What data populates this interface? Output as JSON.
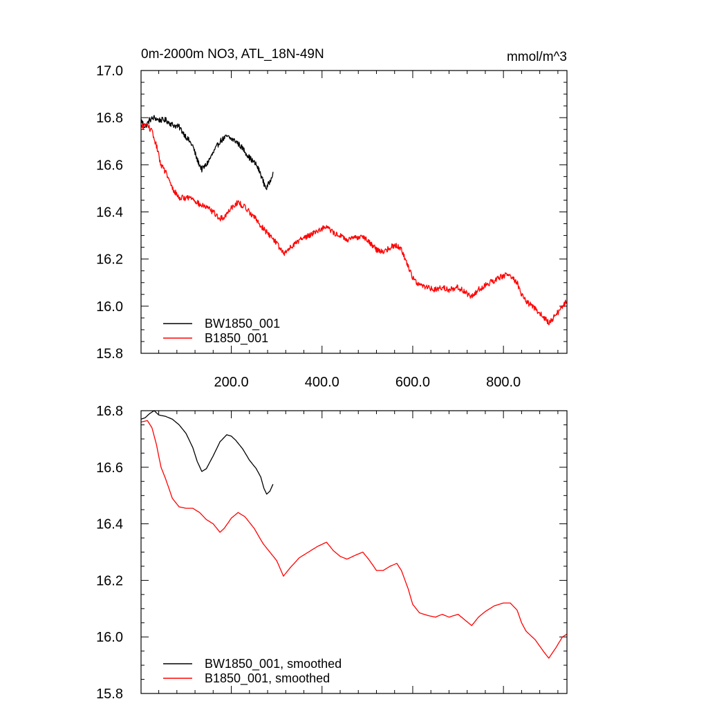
{
  "chart_data": [
    {
      "type": "line",
      "title": "0m-2000m NO3, ATL_18N-49N",
      "units": "mmol/m^3",
      "xlabel": "",
      "ylabel": "",
      "xlim": [
        1,
        940
      ],
      "ylim": [
        15.8,
        17.0
      ],
      "x_ticks": [
        200,
        400,
        600,
        800
      ],
      "x_tick_labels": [
        "200.0",
        "400.0",
        "600.0",
        "800.0"
      ],
      "y_ticks": [
        15.8,
        16.0,
        16.2,
        16.4,
        16.6,
        16.8,
        17.0
      ],
      "y_tick_labels": [
        "15.8",
        "16.0",
        "16.2",
        "16.4",
        "16.6",
        "16.8",
        "17.0"
      ],
      "legend_position": "bottom-left",
      "series": [
        {
          "name": "BW1850_001",
          "color": "#000000",
          "noise": 0.012,
          "x": [
            1,
            10,
            20,
            30,
            40,
            55,
            70,
            85,
            100,
            115,
            125,
            135,
            145,
            160,
            175,
            190,
            200,
            210,
            225,
            240,
            255,
            265,
            272,
            278,
            285,
            292
          ],
          "y": [
            16.79,
            16.76,
            16.79,
            16.8,
            16.79,
            16.79,
            16.77,
            16.76,
            16.72,
            16.68,
            16.62,
            16.58,
            16.6,
            16.65,
            16.7,
            16.72,
            16.71,
            16.7,
            16.67,
            16.63,
            16.6,
            16.56,
            16.52,
            16.5,
            16.53,
            16.57
          ]
        },
        {
          "name": "B1850_001",
          "color": "#ff0000",
          "noise": 0.012,
          "x": [
            1,
            15,
            25,
            35,
            45,
            55,
            70,
            85,
            100,
            115,
            130,
            145,
            160,
            175,
            185,
            200,
            215,
            230,
            250,
            270,
            285,
            300,
            315,
            330,
            350,
            370,
            390,
            410,
            425,
            440,
            455,
            475,
            490,
            505,
            520,
            535,
            550,
            565,
            575,
            590,
            600,
            615,
            635,
            650,
            665,
            680,
            700,
            715,
            730,
            745,
            760,
            780,
            800,
            815,
            830,
            840,
            850,
            870,
            890,
            900,
            915,
            930,
            940
          ],
          "y": [
            16.76,
            16.77,
            16.74,
            16.68,
            16.6,
            16.57,
            16.5,
            16.46,
            16.46,
            16.46,
            16.43,
            16.42,
            16.4,
            16.37,
            16.38,
            16.42,
            16.44,
            16.42,
            16.38,
            16.33,
            16.3,
            16.27,
            16.22,
            16.25,
            16.28,
            16.3,
            16.32,
            16.34,
            16.31,
            16.3,
            16.28,
            16.29,
            16.3,
            16.27,
            16.24,
            16.23,
            16.25,
            16.26,
            16.24,
            16.17,
            16.12,
            16.09,
            16.08,
            16.07,
            16.08,
            16.07,
            16.08,
            16.06,
            16.04,
            16.07,
            16.09,
            16.11,
            16.13,
            16.13,
            16.1,
            16.05,
            16.02,
            15.99,
            15.95,
            15.93,
            15.96,
            16.0,
            16.02
          ]
        }
      ]
    },
    {
      "type": "line",
      "title": "",
      "xlabel": "",
      "ylabel": "",
      "xlim": [
        1,
        940
      ],
      "ylim": [
        15.8,
        16.8
      ],
      "x_ticks": [
        200,
        400,
        600,
        800
      ],
      "x_tick_labels": [],
      "y_ticks": [
        15.8,
        16.0,
        16.2,
        16.4,
        16.6,
        16.8
      ],
      "y_tick_labels": [
        "15.8",
        "16.0",
        "16.2",
        "16.4",
        "16.6",
        "16.8"
      ],
      "legend_position": "bottom-left",
      "series": [
        {
          "name": "BW1850_001, smoothed",
          "color": "#000000",
          "noise": 0.0,
          "x": [
            1,
            10,
            20,
            30,
            40,
            55,
            70,
            85,
            100,
            115,
            125,
            135,
            145,
            160,
            175,
            190,
            200,
            210,
            225,
            240,
            255,
            265,
            272,
            278,
            285,
            292
          ],
          "y": [
            16.77,
            16.775,
            16.79,
            16.8,
            16.785,
            16.78,
            16.77,
            16.75,
            16.72,
            16.67,
            16.62,
            16.585,
            16.595,
            16.64,
            16.69,
            16.715,
            16.71,
            16.695,
            16.665,
            16.625,
            16.595,
            16.565,
            16.525,
            16.505,
            16.515,
            16.54
          ]
        },
        {
          "name": "B1850_001, smoothed",
          "color": "#ff0000",
          "noise": 0.0,
          "x": [
            1,
            15,
            25,
            35,
            45,
            55,
            70,
            85,
            100,
            115,
            130,
            145,
            160,
            175,
            185,
            200,
            215,
            230,
            250,
            270,
            285,
            300,
            315,
            330,
            350,
            370,
            390,
            410,
            425,
            440,
            455,
            475,
            490,
            505,
            520,
            535,
            550,
            565,
            575,
            590,
            600,
            615,
            635,
            650,
            665,
            680,
            700,
            715,
            730,
            745,
            760,
            780,
            800,
            815,
            830,
            840,
            850,
            870,
            890,
            900,
            915,
            930,
            940
          ],
          "y": [
            16.76,
            16.765,
            16.74,
            16.68,
            16.6,
            16.56,
            16.49,
            16.46,
            16.455,
            16.455,
            16.44,
            16.415,
            16.4,
            16.37,
            16.385,
            16.42,
            16.44,
            16.425,
            16.385,
            16.33,
            16.3,
            16.27,
            16.215,
            16.245,
            16.28,
            16.3,
            16.32,
            16.335,
            16.305,
            16.285,
            16.275,
            16.29,
            16.3,
            16.27,
            16.235,
            16.235,
            16.25,
            16.26,
            16.235,
            16.17,
            16.115,
            16.085,
            16.075,
            16.07,
            16.08,
            16.07,
            16.08,
            16.06,
            16.04,
            16.07,
            16.09,
            16.11,
            16.12,
            16.12,
            16.095,
            16.05,
            16.02,
            15.99,
            15.945,
            15.925,
            15.96,
            16.0,
            16.01
          ]
        }
      ]
    }
  ]
}
